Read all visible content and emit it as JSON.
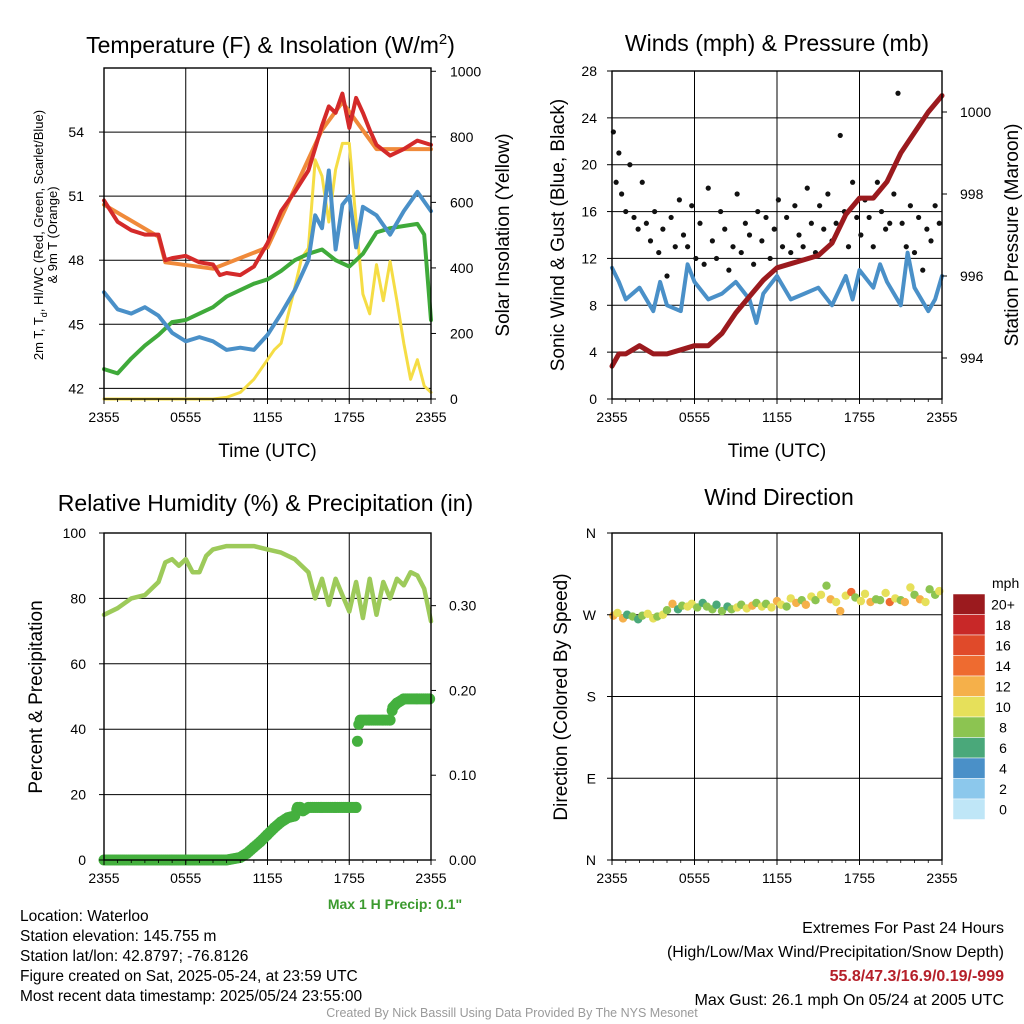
{
  "chart_data": [
    {
      "type": "line",
      "title_main": "Temperature (F) & Insolation (W/m",
      "title_sup": "2",
      "title_close": ")",
      "xlabel": "Time (UTC)",
      "ylabel_left": "2m T, T",
      "ylabel_left_sub": "d",
      "ylabel_left_rest": ", HI/WC (Red, Green, Scarlet/Blue)",
      "ylabel_left2": "& 9m T (Orange)",
      "ylabel_right": "Solar Insolation (Yellow)",
      "xticks": [
        "2355",
        "0555",
        "1155",
        "1755",
        "2355"
      ],
      "yticks_left": [
        "42",
        "45",
        "48",
        "51",
        "54"
      ],
      "yticks_right": [
        "0",
        "200",
        "400",
        "600",
        "800",
        "1000"
      ],
      "ylim_left": [
        41.5,
        57.0
      ],
      "ylim_right": [
        0,
        1010
      ],
      "x_hours_range": [
        0,
        24
      ],
      "series": [
        {
          "name": "2m T",
          "color": "#d42a2a",
          "x": [
            0,
            1,
            2,
            3,
            4,
            4.5,
            5,
            6,
            7,
            8,
            8.5,
            9,
            10,
            11,
            12,
            13,
            14,
            15,
            16,
            16.5,
            17,
            17.5,
            18,
            18.5,
            19,
            19.5,
            20,
            21,
            22,
            23,
            24
          ],
          "y": [
            50.8,
            49.8,
            49.4,
            49.2,
            49.2,
            48.0,
            48.1,
            48.2,
            47.9,
            47.8,
            47.3,
            47.4,
            47.3,
            47.7,
            48.8,
            50.3,
            51.2,
            52.2,
            54.3,
            55.2,
            54.9,
            55.8,
            54.2,
            55.6,
            54.9,
            54.1,
            53.4,
            52.9,
            53.2,
            53.6,
            53.4
          ]
        },
        {
          "name": "9m T",
          "color": "#f08a3a",
          "x": [
            0,
            4,
            4.5,
            8,
            12,
            16,
            17.5,
            20,
            24
          ],
          "y": [
            50.6,
            49.1,
            47.9,
            47.6,
            48.6,
            54.1,
            55.4,
            53.2,
            53.2
          ]
        },
        {
          "name": "Td",
          "color": "#3faa3a",
          "x": [
            0,
            1,
            2,
            3,
            4,
            5,
            6,
            7,
            8,
            9,
            10,
            11,
            12,
            13,
            14,
            15,
            16,
            17,
            18,
            19,
            20,
            21,
            22,
            23,
            23.5,
            24
          ],
          "y": [
            42.9,
            42.7,
            43.4,
            44.0,
            44.5,
            45.1,
            45.2,
            45.5,
            45.8,
            46.3,
            46.6,
            46.9,
            47.1,
            47.5,
            48.0,
            48.3,
            48.5,
            48.0,
            47.7,
            48.3,
            49.3,
            49.5,
            49.6,
            49.7,
            49.2,
            45.2
          ]
        },
        {
          "name": "HI/WC",
          "color": "#4a90c8",
          "x": [
            0,
            1,
            2,
            3,
            4,
            5,
            6,
            7,
            8,
            9,
            10,
            11,
            12,
            13,
            14,
            15,
            15.5,
            16,
            16.5,
            17,
            17.5,
            18,
            18.5,
            19,
            20,
            21,
            22,
            23,
            24
          ],
          "y": [
            46.5,
            45.7,
            45.5,
            45.8,
            45.4,
            44.6,
            44.2,
            44.4,
            44.2,
            43.8,
            43.9,
            43.8,
            44.5,
            45.5,
            46.6,
            48.0,
            50.1,
            49.5,
            52.2,
            48.5,
            50.6,
            51.0,
            48.6,
            50.5,
            50.1,
            49.2,
            50.3,
            51.2,
            50.3
          ]
        },
        {
          "name": "Solar Insolation",
          "color": "#f5dd45",
          "axis": "right",
          "x": [
            0,
            2,
            4,
            6,
            8,
            9,
            10,
            11,
            12,
            12.5,
            13,
            14,
            14.5,
            15,
            15.5,
            16,
            16.5,
            17,
            17.5,
            18,
            18.5,
            19,
            19.5,
            20,
            20.5,
            21,
            21.5,
            22,
            22.5,
            23,
            23.5,
            24
          ],
          "y": [
            0,
            0,
            0,
            0,
            0,
            5,
            20,
            60,
            120,
            150,
            170,
            340,
            430,
            460,
            730,
            680,
            540,
            700,
            780,
            780,
            540,
            320,
            260,
            410,
            300,
            420,
            300,
            170,
            60,
            120,
            40,
            20
          ]
        }
      ]
    },
    {
      "type": "line",
      "title": "Winds (mph) & Pressure (mb)",
      "xlabel": "Time (UTC)",
      "ylabel_left": "Sonic Wind & Gust (Blue, Black)",
      "ylabel_right": "Station Pressure (Maroon)",
      "xticks": [
        "2355",
        "0555",
        "1155",
        "1755",
        "2355"
      ],
      "yticks_left": [
        "0",
        "4",
        "8",
        "12",
        "16",
        "20",
        "24",
        "28"
      ],
      "yticks_right": [
        "994",
        "996",
        "998",
        "1000"
      ],
      "ylim_left": [
        0,
        28
      ],
      "ylim_right": [
        993.0,
        1001.0
      ],
      "series": [
        {
          "name": "Sonic Wind",
          "color": "#4a90c8",
          "x": [
            0,
            0.5,
            1,
            2,
            3,
            3.5,
            4,
            5,
            5.5,
            6,
            7,
            8,
            9,
            10,
            10.5,
            11,
            12,
            13,
            14,
            15,
            16,
            17,
            17.5,
            18,
            19,
            19.5,
            20,
            21,
            21.5,
            22,
            23,
            23.5,
            24
          ],
          "y": [
            11.2,
            10.0,
            8.5,
            9.5,
            7.5,
            10.0,
            8.0,
            7.5,
            11.5,
            10.0,
            8.5,
            9.0,
            10.0,
            8.5,
            6.5,
            9.0,
            10.5,
            8.5,
            9.0,
            9.5,
            8.0,
            10.5,
            8.5,
            11.0,
            9.5,
            11.5,
            10.0,
            8.0,
            12.5,
            9.5,
            7.5,
            8.5,
            10.5
          ]
        },
        {
          "name": "Gust",
          "color": "#111111",
          "kind": "scatter",
          "x": [
            0.1,
            0.3,
            0.5,
            0.7,
            1.0,
            1.3,
            1.6,
            1.9,
            2.2,
            2.5,
            2.8,
            3.1,
            3.4,
            3.7,
            4.0,
            4.3,
            4.6,
            4.9,
            5.2,
            5.5,
            5.8,
            6.1,
            6.4,
            6.7,
            7.0,
            7.3,
            7.6,
            7.9,
            8.2,
            8.5,
            8.8,
            9.1,
            9.4,
            9.7,
            10.0,
            10.3,
            10.6,
            10.9,
            11.2,
            11.5,
            11.8,
            12.1,
            12.4,
            12.7,
            13.0,
            13.3,
            13.6,
            13.9,
            14.2,
            14.5,
            14.8,
            15.1,
            15.4,
            15.7,
            16.0,
            16.3,
            16.6,
            16.9,
            17.2,
            17.5,
            17.8,
            18.1,
            18.4,
            18.7,
            19.0,
            19.3,
            19.6,
            19.9,
            20.2,
            20.5,
            20.8,
            21.1,
            21.4,
            21.7,
            22.0,
            22.3,
            22.6,
            22.9,
            23.2,
            23.5,
            23.8
          ],
          "y": [
            22.8,
            18.5,
            21.0,
            17.5,
            16.0,
            20.0,
            15.5,
            14.5,
            18.5,
            15.0,
            13.5,
            16.0,
            12.5,
            14.5,
            10.5,
            15.5,
            13.0,
            17.0,
            14.0,
            13.0,
            16.5,
            12.0,
            15.0,
            11.5,
            18.0,
            13.5,
            12.0,
            16.0,
            14.5,
            11.0,
            13.0,
            17.5,
            12.5,
            15.0,
            14.0,
            11.5,
            16.0,
            13.5,
            15.5,
            12.0,
            14.5,
            17.0,
            13.0,
            15.5,
            12.5,
            16.5,
            14.0,
            13.0,
            18.0,
            15.0,
            12.5,
            16.5,
            14.5,
            17.5,
            13.5,
            15.0,
            22.5,
            16.0,
            13.0,
            18.5,
            15.5,
            14.0,
            17.0,
            15.5,
            13.0,
            18.5,
            16.0,
            14.5,
            15.0,
            17.5,
            26.1,
            15.0,
            13.0,
            16.5,
            12.5,
            15.5,
            11.0,
            14.5,
            13.5,
            16.5,
            15.0
          ]
        },
        {
          "name": "Station Pressure",
          "color": "#9b1a1e",
          "axis": "right",
          "x": [
            0,
            0.5,
            1,
            2,
            2.5,
            3,
            4,
            5,
            6,
            7,
            8,
            9,
            10,
            11,
            12,
            13,
            14,
            15,
            16,
            17,
            18,
            19,
            20,
            21,
            22,
            23,
            24
          ],
          "y": [
            993.8,
            994.1,
            994.1,
            994.3,
            994.2,
            994.1,
            994.1,
            994.2,
            994.3,
            994.3,
            994.6,
            995.1,
            995.5,
            995.9,
            996.2,
            996.3,
            996.4,
            996.5,
            996.8,
            997.5,
            997.9,
            997.9,
            998.3,
            999.0,
            999.5,
            1000.0,
            1000.4
          ]
        }
      ]
    },
    {
      "type": "line",
      "title": "Relative Humidity (%) & Precipitation (in)",
      "ylabel_left": "Percent & Precipitation",
      "xticks": [
        "2355",
        "0555",
        "1155",
        "1755",
        "2355"
      ],
      "yticks_left": [
        "0",
        "20",
        "40",
        "60",
        "80",
        "100"
      ],
      "yticks_right": [
        "0.00",
        "0.10",
        "0.20",
        "0.30"
      ],
      "ylim_left": [
        0,
        100
      ],
      "ylim_right": [
        0,
        0.3857
      ],
      "max_1h_precip": "Max 1 H Precip: 0.1\"",
      "series": [
        {
          "name": "Relative Humidity",
          "color": "#9dca5a",
          "x": [
            0,
            1,
            2,
            3,
            4,
            4.5,
            5,
            5.5,
            6,
            6.5,
            7,
            7.5,
            8,
            9,
            10,
            11,
            12,
            13,
            14,
            15,
            15.5,
            16,
            16.5,
            17,
            17.5,
            18,
            18.5,
            19,
            19.5,
            20,
            20.5,
            21,
            21.5,
            22,
            22.5,
            23,
            23.5,
            24
          ],
          "y": [
            75,
            77,
            80,
            81,
            85,
            91,
            92,
            90,
            92,
            88,
            88,
            93,
            95,
            96,
            96,
            96,
            95,
            94,
            92,
            88,
            80,
            86,
            78,
            86,
            81,
            76,
            85,
            74,
            86,
            75,
            85,
            80,
            86,
            84,
            88,
            87,
            83,
            73
          ]
        },
        {
          "name": "Precipitation",
          "color": "#44b03e",
          "axis": "right",
          "x": [
            0,
            5,
            9,
            10,
            10.5,
            11,
            11.5,
            12,
            12.5,
            13,
            13.5,
            14,
            14.2,
            14.4,
            14.6,
            15,
            16,
            17,
            18.5,
            18.6,
            18.7,
            18.8,
            19.5,
            20.5,
            21.0,
            21.2,
            21.5,
            22,
            23,
            24
          ],
          "y": [
            0.0,
            0.0,
            0.0,
            0.003,
            0.008,
            0.015,
            0.022,
            0.03,
            0.038,
            0.045,
            0.05,
            0.052,
            0.062,
            0.062,
            0.058,
            0.062,
            0.062,
            0.062,
            0.062,
            0.14,
            0.16,
            0.165,
            0.165,
            0.165,
            0.165,
            0.18,
            0.185,
            0.19,
            0.19,
            0.19
          ]
        }
      ]
    },
    {
      "type": "scatter",
      "title": "Wind Direction",
      "ylabel_left": "Direction (Colored By Speed)",
      "xticks": [
        "2355",
        "0555",
        "1155",
        "1755",
        "2355"
      ],
      "yticks_left": [
        "N",
        "E",
        "S",
        "W",
        "N"
      ],
      "ylim_left": [
        0,
        360
      ],
      "colorbar_title": "mph",
      "colorbar_labels": [
        "0",
        "2",
        "4",
        "6",
        "8",
        "10",
        "12",
        "14",
        "16",
        "18",
        "20+"
      ],
      "colorbar_colors": [
        "#bfe6f7",
        "#8cc8ec",
        "#4a90c8",
        "#4aa87a",
        "#8cc451",
        "#e6e05a",
        "#f5b04a",
        "#ee6b30",
        "#e04a2a",
        "#c82828",
        "#9b1a1e"
      ],
      "points_x": [
        0.1,
        0.4,
        0.8,
        1.1,
        1.5,
        1.9,
        2.2,
        2.6,
        3.0,
        3.3,
        3.7,
        4.0,
        4.4,
        4.8,
        5.1,
        5.5,
        5.8,
        6.2,
        6.6,
        6.9,
        7.3,
        7.6,
        8.0,
        8.4,
        8.7,
        9.1,
        9.4,
        9.8,
        10.2,
        10.5,
        10.9,
        11.2,
        11.6,
        12.0,
        12.3,
        12.7,
        13.0,
        13.4,
        13.8,
        14.1,
        14.5,
        14.8,
        15.2,
        15.6,
        15.9,
        16.3,
        16.6,
        17.0,
        17.4,
        17.7,
        18.1,
        18.4,
        18.8,
        19.2,
        19.5,
        19.9,
        20.2,
        20.6,
        21.0,
        21.3,
        21.7,
        22.0,
        22.4,
        22.8,
        23.1,
        23.5,
        23.8
      ],
      "points_dir": [
        269,
        272,
        266,
        270,
        268,
        265,
        269,
        271,
        266,
        268,
        270,
        275,
        282,
        276,
        280,
        279,
        282,
        278,
        283,
        279,
        276,
        281,
        274,
        279,
        276,
        278,
        281,
        277,
        280,
        283,
        279,
        282,
        278,
        285,
        281,
        279,
        288,
        283,
        286,
        281,
        290,
        286,
        292,
        302,
        287,
        284,
        274,
        291,
        295,
        289,
        285,
        293,
        284,
        287,
        286,
        294,
        284,
        288,
        286,
        284,
        300,
        292,
        287,
        284,
        298,
        292,
        296
      ],
      "points_spd": [
        12,
        10,
        12,
        6,
        9,
        7,
        8,
        10,
        11,
        8,
        10,
        9,
        12,
        7,
        8,
        10,
        11,
        9,
        6,
        8,
        9,
        6,
        8,
        7,
        9,
        11,
        8,
        10,
        12,
        9,
        11,
        8,
        10,
        12,
        10,
        9,
        11,
        13,
        8,
        12,
        10,
        9,
        10,
        9,
        12,
        11,
        12,
        10,
        14,
        8,
        11,
        10,
        13,
        8,
        9,
        11,
        14,
        10,
        9,
        12,
        10,
        9,
        13,
        10,
        9,
        8,
        10
      ]
    }
  ],
  "info": {
    "location": "Location: Waterloo",
    "elevation": "Station elevation: 145.755 m",
    "latlon": "Station lat/lon: 42.8797; -76.8126",
    "created": "Figure created on Sat, 2025-05-24, at 23:59 UTC",
    "recent": "Most recent data timestamp: 2025/05/24 23:55:00"
  },
  "extremes": {
    "heading": "Extremes For Past 24 Hours",
    "subheading": "(High/Low/Max Wind/Precipitation/Snow Depth)",
    "values": "55.8/47.3/16.9/0.19/-999",
    "max_gust": "Max Gust: 26.1 mph On 05/24 at 2005 UTC"
  },
  "credit": "Created By Nick Bassill Using Data Provided By The NYS Mesonet"
}
